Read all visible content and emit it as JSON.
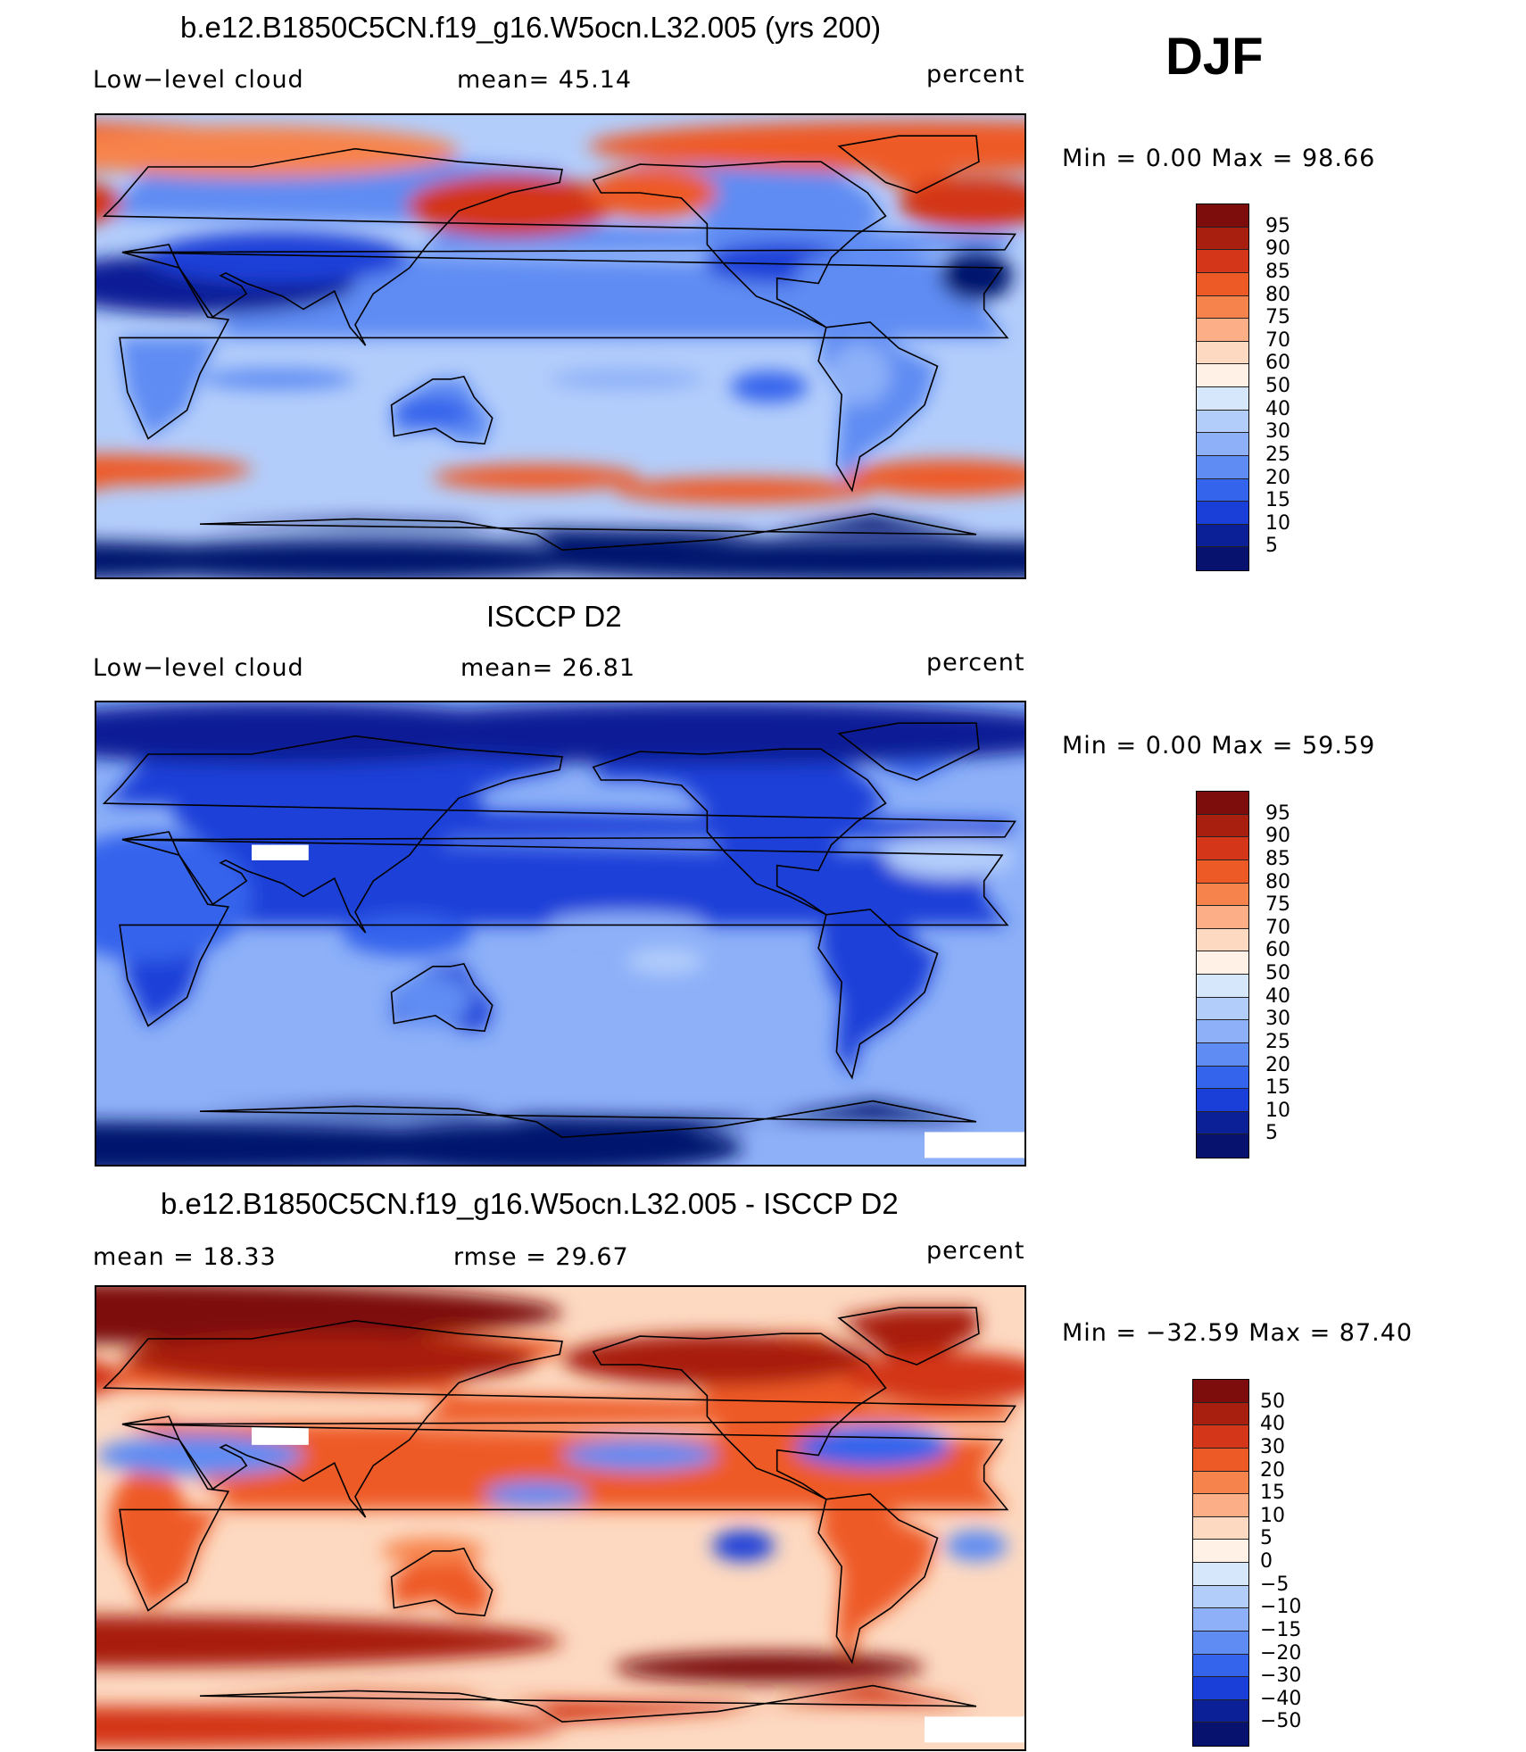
{
  "season": "DJF",
  "panels": [
    {
      "title": "b.e12.B1850C5CN.f19_g16.W5ocn.L32.005 (yrs 200)",
      "left_label": "Low−level cloud",
      "stat1": "mean=   45.14",
      "stat2": "",
      "units": "percent",
      "minmax": "Min  =     0.00  Max  =    98.66",
      "levels": [
        "95",
        "90",
        "85",
        "80",
        "75",
        "70",
        "60",
        "50",
        "40",
        "30",
        "25",
        "20",
        "15",
        "10",
        "5"
      ],
      "palette": "abs",
      "scene": "model"
    },
    {
      "title": "ISCCP D2",
      "left_label": "Low−level cloud",
      "stat1": "mean=   26.81",
      "stat2": "",
      "units": "percent",
      "minmax": "Min  =     0.00  Max  =    59.59",
      "levels": [
        "95",
        "90",
        "85",
        "80",
        "75",
        "70",
        "60",
        "50",
        "40",
        "30",
        "25",
        "20",
        "15",
        "10",
        "5"
      ],
      "palette": "abs",
      "scene": "obs"
    },
    {
      "title": "b.e12.B1850C5CN.f19_g16.W5ocn.L32.005 - ISCCP D2",
      "left_label": "mean  =     18.33",
      "stat1": "rmse  =     29.67",
      "stat2": "",
      "units": "percent",
      "minmax": "Min  =  −32.59  Max  =    87.40",
      "levels": [
        "50",
        "40",
        "30",
        "20",
        "15",
        "10",
        "5",
        "0",
        "−5",
        "−10",
        "−15",
        "−20",
        "−30",
        "−40",
        "−50"
      ],
      "palette": "diff",
      "scene": "diff"
    }
  ],
  "colors": {
    "abs": [
      "#7d0c0c",
      "#a81e0f",
      "#d33618",
      "#ee5a26",
      "#f7834c",
      "#fcae86",
      "#fdd9c1",
      "#fff1e6",
      "#d7e7fb",
      "#b3cdfb",
      "#8db0f8",
      "#5f8cf3",
      "#3464ec",
      "#1a3fd8",
      "#0b1f96",
      "#06126e"
    ],
    "diff": [
      "#7d0c0c",
      "#a81e0f",
      "#d33618",
      "#ee5a26",
      "#f7834c",
      "#fcae86",
      "#fdd9c1",
      "#fff1e6",
      "#d7e7fb",
      "#b3cdfb",
      "#8db0f8",
      "#5f8cf3",
      "#3464ec",
      "#1a3fd8",
      "#0b1f96",
      "#06126e"
    ]
  }
}
